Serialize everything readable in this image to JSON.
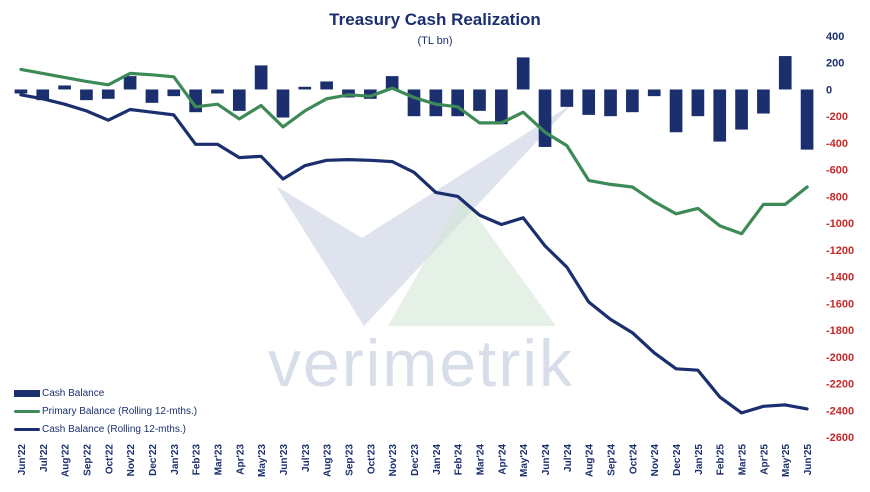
{
  "chart_data": {
    "type": "bar+line",
    "title": "Treasury  Cash Realization",
    "subtitle": "(TL bn)",
    "categories": [
      "Jun'22",
      "Jul'22",
      "Aug'22",
      "Sep'22",
      "Oct'22",
      "Nov'22",
      "Dec'22",
      "Jan'23",
      "Feb'23",
      "Mar'23",
      "Apr'23",
      "May'23",
      "Jun'23",
      "Jul'23",
      "Aug'23",
      "Sep'23",
      "Oct'23",
      "Nov'23",
      "Dec'23",
      "Jan'24",
      "Feb'24",
      "Mar'24",
      "Apr'24",
      "May'24",
      "Jun'24",
      "Jul'24",
      "Aug'24",
      "Sep'24",
      "Oct'24",
      "Nov'24",
      "Dec'24",
      "Jan'25",
      "Feb'25",
      "Mar'25",
      "Apr'25",
      "May'25",
      "Jun'25"
    ],
    "ylim": [
      -2600,
      400
    ],
    "yticks": [
      400,
      200,
      0,
      -200,
      -400,
      -600,
      -800,
      -1000,
      -1200,
      -1400,
      -1600,
      -1800,
      -2000,
      -2200,
      -2400,
      -2600
    ],
    "series": [
      {
        "name": "Cash Balance",
        "kind": "bar",
        "color": "#1b2f6e",
        "values": [
          -30,
          -80,
          30,
          -80,
          -70,
          100,
          -100,
          -50,
          -170,
          -30,
          -160,
          180,
          -210,
          20,
          60,
          -60,
          -70,
          100,
          -200,
          -200,
          -200,
          -160,
          -260,
          240,
          -430,
          -130,
          -190,
          -200,
          -170,
          -50,
          -320,
          -200,
          -390,
          -300,
          -180,
          250,
          -450
        ]
      },
      {
        "name": "Primary Balance (Rolling 12-mths.)",
        "kind": "line",
        "color": "#3e8a57",
        "values": [
          150,
          120,
          90,
          60,
          35,
          120,
          110,
          95,
          -130,
          -110,
          -220,
          -120,
          -280,
          -160,
          -70,
          -40,
          -50,
          10,
          -60,
          -110,
          -130,
          -250,
          -250,
          -170,
          -320,
          -420,
          -680,
          -710,
          -730,
          -840,
          -930,
          -890,
          -1020,
          -1080,
          -860,
          -860,
          -730
        ]
      },
      {
        "name": "Cash Balance (Rolling 12-mths.)",
        "kind": "line",
        "color": "#1b2f6e",
        "values": [
          -40,
          -70,
          -110,
          -160,
          -230,
          -150,
          -170,
          -190,
          -410,
          -410,
          -510,
          -500,
          -670,
          -570,
          -530,
          -525,
          -530,
          -540,
          -620,
          -770,
          -800,
          -940,
          -1010,
          -960,
          -1170,
          -1330,
          -1590,
          -1720,
          -1820,
          -1970,
          -2090,
          -2100,
          -2300,
          -2420,
          -2370,
          -2360,
          -2390
        ]
      }
    ],
    "watermark": "verimetrik",
    "legend_position": "bottom-left"
  }
}
